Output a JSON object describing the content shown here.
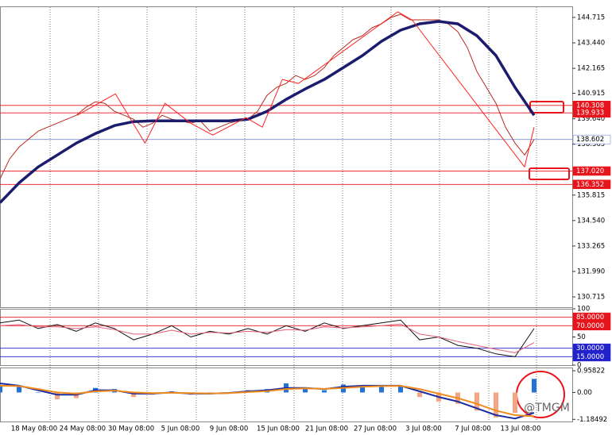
{
  "chart_data": [
    {
      "type": "line",
      "xlim": [
        0,
        60
      ],
      "ylim": [
        130.2,
        145.27
      ],
      "xticks": [
        {
          "value": 5.25,
          "label": "18 May 08:00"
        },
        {
          "value": 10.33,
          "label": "24 May 08:00"
        },
        {
          "value": 15.42,
          "label": "30 May 08:00"
        },
        {
          "value": 20.58,
          "label": "5 Jun 08:00"
        },
        {
          "value": 25.67,
          "label": "9 Jun 08:00"
        },
        {
          "value": 30.83,
          "label": "15 Jun 08:00"
        },
        {
          "value": 35.92,
          "label": "21 Jun 08:00"
        },
        {
          "value": 41,
          "label": "27 Jun 08:00"
        },
        {
          "value": 46.08,
          "label": "3 Jul 08:00"
        },
        {
          "value": 51.25,
          "label": "7 Jul 08:00"
        },
        {
          "value": 56.25,
          "label": "13 Jul 08:00"
        }
      ],
      "yticks": [
        144.715,
        {
          "value": 143.44,
          "label": "143.440"
        },
        142.165,
        140.915,
        {
          "value": 139.64,
          "label": "139.640"
        },
        138.365,
        135.815,
        {
          "value": 134.54,
          "label": "134.540"
        },
        133.265,
        {
          "value": 131.99,
          "label": "131.990"
        },
        130.715
      ],
      "levels": [
        {
          "value": 140.308,
          "label": "140.308",
          "color": "#e8141b",
          "box_color": "#e8141b",
          "text_color": "#ffffff"
        },
        {
          "value": 139.933,
          "label": "139.933",
          "color": "#e8141b",
          "box_color": "#e8141b",
          "text_color": "#ffffff"
        },
        {
          "value": 138.602,
          "label": "138.602",
          "color": "#7b8fd6",
          "box_color": "#ffffff",
          "text_color": "#000000"
        },
        {
          "value": 137.02,
          "label": "137.020",
          "color": "#e8141b",
          "box_color": "#e8141b",
          "text_color": "#ffffff"
        },
        {
          "value": 136.352,
          "label": "136.352",
          "color": "#e8141b",
          "box_color": "#e8141b",
          "text_color": "#ffffff"
        }
      ],
      "series": [
        {
          "color": "#b5281e",
          "width": 1,
          "x": [
            0,
            1,
            2,
            3,
            4,
            5,
            6,
            7,
            8,
            9,
            10,
            11,
            12,
            13,
            14,
            15,
            16,
            17,
            18,
            19,
            20,
            21,
            22,
            23,
            24,
            25,
            26,
            27,
            28,
            29,
            30,
            31,
            32,
            33,
            34,
            35,
            36,
            37,
            38,
            39,
            40,
            41,
            42,
            43,
            44,
            45,
            46,
            47,
            48,
            49,
            50,
            51,
            52,
            53,
            54,
            55,
            56
          ],
          "values": [
            136.627,
            137.623,
            138.221,
            138.619,
            139.018,
            139.217,
            139.416,
            139.615,
            139.815,
            140.213,
            140.492,
            140.412,
            140.014,
            139.815,
            139.615,
            139.217,
            139.416,
            139.815,
            139.615,
            139.536,
            139.416,
            139.536,
            139.018,
            139.217,
            139.416,
            139.536,
            139.615,
            140.014,
            140.811,
            141.209,
            141.408,
            141.807,
            141.607,
            141.807,
            142.205,
            142.803,
            143.201,
            143.599,
            143.799,
            144.197,
            144.396,
            144.715,
            144.874,
            144.595,
            144.595,
            144.595,
            144.595,
            144.396,
            143.998,
            143.201,
            142.006,
            141.209,
            140.412,
            139.217,
            138.42,
            137.823,
            138.602
          ]
        },
        {
          "color": "#1c1c6e",
          "width": 3.5,
          "x": [
            0,
            2,
            4,
            6,
            8,
            10,
            12,
            14,
            16,
            18,
            20,
            22,
            24,
            26,
            28,
            30,
            32,
            34,
            36,
            38,
            40,
            42,
            44,
            46,
            48,
            50,
            52,
            54,
            56
          ],
          "values": [
            135.432,
            136.428,
            137.225,
            137.823,
            138.42,
            138.898,
            139.297,
            139.496,
            139.536,
            139.536,
            139.536,
            139.536,
            139.536,
            139.615,
            140.014,
            140.611,
            141.129,
            141.607,
            142.205,
            142.803,
            143.52,
            144.078,
            144.396,
            144.516,
            144.396,
            143.799,
            142.803,
            141.209,
            139.815
          ]
        },
        {
          "color": "#ff2020",
          "width": 1,
          "x": [
            8.1,
            12.1,
            15.2,
            17.3,
            20,
            22.3,
            25.8,
            27.5,
            29.6,
            31.3,
            41.7,
            43.2,
            55,
            56
          ],
          "values": [
            139.815,
            140.89,
            138.42,
            140.412,
            139.416,
            138.819,
            139.695,
            139.217,
            141.607,
            141.408,
            144.994,
            144.595,
            137.225,
            139.217
          ]
        }
      ]
    },
    {
      "type": "line",
      "xlim": [
        0,
        60
      ],
      "ylim": [
        0,
        100
      ],
      "yticks": [
        100,
        50,
        0
      ],
      "levels": [
        {
          "value": 85,
          "label": "85.0000",
          "color": "#e8141b",
          "box_color": "#e8141b",
          "text_color": "#ffffff"
        },
        {
          "value": 70,
          "label": "70.0000",
          "color": "#e8141b",
          "box_color": "#e8141b",
          "text_color": "#ffffff"
        },
        {
          "value": 30,
          "label": "30.0000",
          "color": "#2222cc",
          "box_color": "#2222cc",
          "text_color": "#ffffff"
        },
        {
          "value": 15,
          "label": "15.0000",
          "color": "#2222cc",
          "box_color": "#2222cc",
          "text_color": "#ffffff"
        }
      ],
      "series": [
        {
          "color": "#111111",
          "width": 1,
          "x": [
            0,
            2,
            4,
            6,
            8,
            10,
            12,
            14,
            16,
            18,
            20,
            22,
            24,
            26,
            28,
            30,
            32,
            34,
            36,
            38,
            40,
            42,
            44,
            46,
            48,
            50,
            52,
            54,
            56
          ],
          "values": [
            75,
            80,
            65,
            72,
            60,
            75,
            65,
            45,
            55,
            70,
            50,
            60,
            55,
            65,
            55,
            70,
            60,
            75,
            65,
            70,
            75,
            80,
            45,
            50,
            35,
            30,
            20,
            15,
            65
          ]
        },
        {
          "color": "#e0607a",
          "width": 1,
          "x": [
            0,
            2,
            4,
            6,
            8,
            10,
            12,
            14,
            16,
            18,
            20,
            22,
            24,
            26,
            28,
            30,
            32,
            34,
            36,
            38,
            40,
            42,
            44,
            46,
            48,
            50,
            52,
            54,
            56
          ],
          "values": [
            70,
            72,
            68,
            68,
            65,
            68,
            63,
            55,
            55,
            62,
            55,
            58,
            57,
            60,
            58,
            63,
            62,
            68,
            66,
            68,
            70,
            73,
            55,
            50,
            42,
            35,
            28,
            22,
            40
          ]
        }
      ]
    },
    {
      "type": "bar",
      "xlim": [
        0,
        60
      ],
      "ylim": [
        -1.28,
        1.1
      ],
      "yticks": [
        0.95822,
        {
          "value": 0,
          "label": "0.00"
        },
        -1.18492
      ],
      "series": [
        {
          "type": "bar",
          "color": "#1e73d8",
          "negative_color": "#f4a582",
          "x": [
            0,
            2,
            4,
            6,
            8,
            10,
            12,
            14,
            16,
            18,
            20,
            22,
            24,
            26,
            28,
            30,
            32,
            34,
            36,
            38,
            40,
            42,
            44,
            46,
            48,
            50,
            52,
            54,
            56
          ],
          "values": [
            0.3,
            0.25,
            0.0,
            -0.3,
            -0.25,
            0.2,
            0.15,
            -0.2,
            -0.1,
            0.05,
            -0.1,
            0.0,
            -0.05,
            0.1,
            0.15,
            0.4,
            0.2,
            0.1,
            0.35,
            0.3,
            0.25,
            0.3,
            -0.2,
            -0.4,
            -0.5,
            -0.8,
            -1.1,
            -0.9,
            0.6
          ]
        },
        {
          "type": "line",
          "color": "#1c2aa0",
          "width": 2,
          "x": [
            0,
            2,
            4,
            6,
            8,
            10,
            12,
            14,
            16,
            18,
            20,
            22,
            24,
            26,
            28,
            30,
            32,
            34,
            36,
            38,
            40,
            42,
            44,
            46,
            48,
            50,
            52,
            54,
            56
          ],
          "values": [
            0.4,
            0.3,
            0.1,
            -0.1,
            -0.1,
            0.1,
            0.1,
            -0.05,
            -0.05,
            0.0,
            -0.05,
            -0.05,
            -0.02,
            0.05,
            0.1,
            0.2,
            0.2,
            0.15,
            0.25,
            0.3,
            0.3,
            0.3,
            0.05,
            -0.2,
            -0.4,
            -0.7,
            -1.0,
            -1.15,
            -0.9
          ]
        },
        {
          "type": "line",
          "color": "#f08c1e",
          "width": 2,
          "x": [
            0,
            2,
            4,
            6,
            8,
            10,
            12,
            14,
            16,
            18,
            20,
            22,
            24,
            26,
            28,
            30,
            32,
            34,
            36,
            38,
            40,
            42,
            44,
            46,
            48,
            50,
            52,
            54,
            56
          ],
          "values": [
            0.3,
            0.28,
            0.15,
            0.0,
            -0.05,
            0.05,
            0.08,
            0.0,
            -0.03,
            -0.01,
            -0.03,
            -0.04,
            -0.03,
            0.02,
            0.06,
            0.15,
            0.18,
            0.16,
            0.2,
            0.25,
            0.28,
            0.29,
            0.15,
            -0.05,
            -0.25,
            -0.5,
            -0.8,
            -1.0,
            -1.05
          ]
        }
      ]
    }
  ],
  "watermark": "@TMGM"
}
